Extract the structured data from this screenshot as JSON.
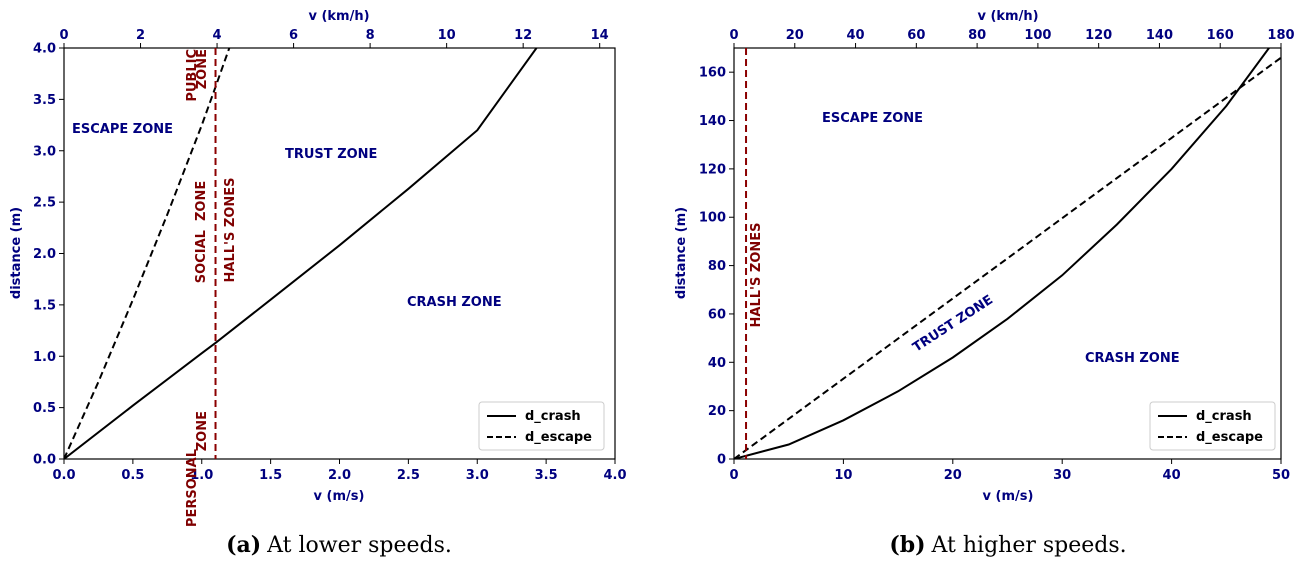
{
  "chart_data": [
    {
      "type": "line",
      "caption_label": "(a)",
      "caption_text": "At lower speeds.",
      "xlabel": "v (m/s)",
      "ylabel": "distance (m)",
      "x2label": "v (km/h)",
      "xlim": [
        0,
        4
      ],
      "ylim": [
        0,
        4
      ],
      "x2lim": [
        0,
        14.4
      ],
      "xticks": [
        "0.0",
        "0.5",
        "1.0",
        "1.5",
        "2.0",
        "2.5",
        "3.0",
        "3.5",
        "4.0"
      ],
      "yticks": [
        "0.0",
        "0.5",
        "1.0",
        "1.5",
        "2.0",
        "2.5",
        "3.0",
        "3.5",
        "4.0"
      ],
      "x2ticks": [
        "0",
        "2",
        "4",
        "6",
        "8",
        "10",
        "12",
        "14"
      ],
      "series": [
        {
          "name": "d_crash",
          "style": "solid",
          "x": [
            0,
            0.5,
            1.0,
            1.1,
            1.5,
            2.0,
            2.5,
            3.0,
            3.43
          ],
          "y": [
            0,
            0.52,
            1.03,
            1.13,
            1.55,
            2.08,
            2.63,
            3.2,
            4.0
          ]
        },
        {
          "name": "d_escape",
          "style": "dashed",
          "x": [
            0,
            0.25,
            0.5,
            0.75,
            1.0,
            1.1,
            1.2
          ],
          "y": [
            0,
            0.75,
            1.55,
            2.38,
            3.25,
            3.62,
            4.0
          ]
        }
      ],
      "vline": {
        "x": 1.1,
        "color": "#8b0000"
      },
      "zone_labels": [
        "ESCAPE ZONE",
        "TRUST ZONE",
        "CRASH ZONE"
      ],
      "hall_labels": [
        "PUBLIC ZONE",
        "SOCIAL  ZONE",
        "HALL'S ZONES",
        "PERSONAL ZONE"
      ],
      "legend_placement": "lower-right",
      "colors": {
        "axis_text": "#00007f",
        "hall": "#7f0000",
        "line": "#000000"
      }
    },
    {
      "type": "line",
      "caption_label": "(b)",
      "caption_text": "At higher speeds.",
      "xlabel": "v (m/s)",
      "ylabel": "distance (m)",
      "x2label": "v (km/h)",
      "xlim": [
        0,
        50
      ],
      "ylim": [
        0,
        170
      ],
      "x2lim": [
        0,
        180
      ],
      "xticks": [
        "0",
        "10",
        "20",
        "30",
        "40",
        "50"
      ],
      "yticks": [
        "0",
        "20",
        "40",
        "60",
        "80",
        "100",
        "120",
        "140",
        "160"
      ],
      "x2ticks": [
        "0",
        "20",
        "40",
        "60",
        "80",
        "100",
        "120",
        "140",
        "160",
        "180"
      ],
      "series": [
        {
          "name": "d_crash",
          "style": "solid",
          "x": [
            0,
            5,
            10,
            15,
            20,
            25,
            30,
            35,
            40,
            45,
            48.9
          ],
          "y": [
            0,
            6,
            16,
            28,
            42,
            58,
            76,
            97,
            120,
            146,
            170
          ]
        },
        {
          "name": "d_escape",
          "style": "dashed",
          "x": [
            0,
            10,
            20,
            30,
            40,
            50
          ],
          "y": [
            0,
            33.2,
            66.4,
            99.6,
            132.8,
            166
          ]
        }
      ],
      "vline": {
        "x": 1.1,
        "color": "#8b0000"
      },
      "zone_labels": [
        "ESCAPE ZONE",
        "TRUST ZONE",
        "CRASH ZONE"
      ],
      "hall_labels": [
        "HALL'S ZONES"
      ],
      "legend_placement": "lower-right",
      "colors": {
        "axis_text": "#00007f",
        "hall": "#7f0000",
        "line": "#000000"
      }
    }
  ]
}
